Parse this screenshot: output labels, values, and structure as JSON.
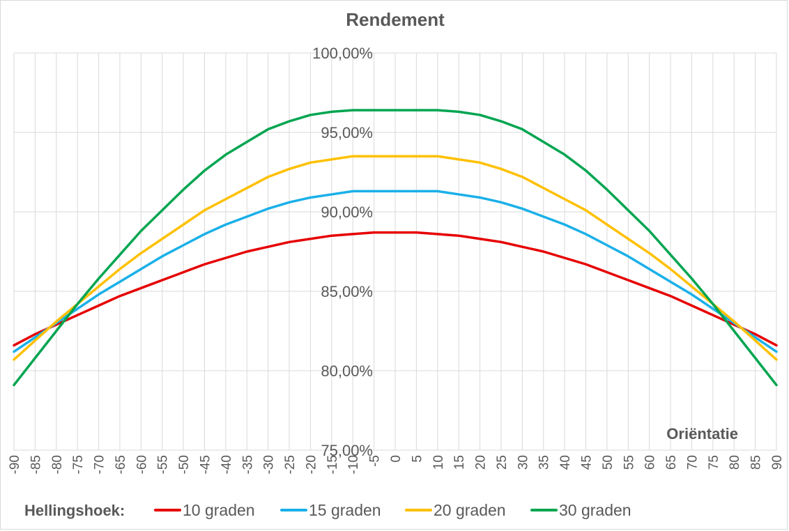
{
  "chart_data": {
    "type": "line",
    "title": "Rendement",
    "xlabel": "Oriëntatie",
    "ylabel": "",
    "x": [
      -90,
      -85,
      -80,
      -75,
      -70,
      -65,
      -60,
      -55,
      -50,
      -45,
      -40,
      -35,
      -30,
      -25,
      -20,
      -15,
      -10,
      -5,
      0,
      5,
      10,
      15,
      20,
      25,
      30,
      35,
      40,
      45,
      50,
      55,
      60,
      65,
      70,
      75,
      80,
      85,
      90
    ],
    "x_tick_labels": [
      "-90",
      "-85",
      "-80",
      "-75",
      "-70",
      "-65",
      "-60",
      "-55",
      "-50",
      "-45",
      "-40",
      "-35",
      "-30",
      "-25",
      "-20",
      "-15",
      "-10",
      "-5",
      "0",
      "5",
      "10",
      "15",
      "20",
      "25",
      "30",
      "35",
      "40",
      "45",
      "50",
      "55",
      "60",
      "65",
      "70",
      "75",
      "80",
      "85",
      "90"
    ],
    "y_tick_labels": [
      "75,00%",
      "80,00%",
      "85,00%",
      "90,00%",
      "95,00%",
      "100,00%"
    ],
    "y_ticks": [
      75,
      80,
      85,
      90,
      95,
      100
    ],
    "xlim": [
      -90,
      90
    ],
    "ylim": [
      75,
      100
    ],
    "y_unit": "%",
    "grid": {
      "vertical": true,
      "horizontal": true
    },
    "legend": {
      "title": "Hellingshoek:",
      "position": "bottom"
    },
    "series": [
      {
        "name": "10 graden",
        "color": "#e60000",
        "values": [
          81.6,
          82.3,
          82.9,
          83.5,
          84.1,
          84.7,
          85.2,
          85.7,
          86.2,
          86.7,
          87.1,
          87.5,
          87.8,
          88.1,
          88.3,
          88.5,
          88.6,
          88.7,
          88.7,
          88.7,
          88.6,
          88.5,
          88.3,
          88.1,
          87.8,
          87.5,
          87.1,
          86.7,
          86.2,
          85.7,
          85.2,
          84.7,
          84.1,
          83.5,
          82.9,
          82.3,
          81.6
        ]
      },
      {
        "name": "15 graden",
        "color": "#1ab0e8",
        "values": [
          81.2,
          82.1,
          83.0,
          83.9,
          84.8,
          85.6,
          86.4,
          87.2,
          87.9,
          88.6,
          89.2,
          89.7,
          90.2,
          90.6,
          90.9,
          91.1,
          91.3,
          91.3,
          91.3,
          91.3,
          91.3,
          91.1,
          90.9,
          90.6,
          90.2,
          89.7,
          89.2,
          88.6,
          87.9,
          87.2,
          86.4,
          85.6,
          84.8,
          83.9,
          83.0,
          82.1,
          81.2
        ]
      },
      {
        "name": "20 graden",
        "color": "#ffc000",
        "values": [
          80.7,
          81.9,
          83.1,
          84.2,
          85.3,
          86.4,
          87.4,
          88.3,
          89.2,
          90.1,
          90.8,
          91.5,
          92.2,
          92.7,
          93.1,
          93.3,
          93.5,
          93.5,
          93.5,
          93.5,
          93.5,
          93.3,
          93.1,
          92.7,
          92.2,
          91.5,
          90.8,
          90.1,
          89.2,
          88.3,
          87.4,
          86.4,
          85.3,
          84.2,
          83.1,
          81.9,
          80.7
        ]
      },
      {
        "name": "30 graden",
        "color": "#00a550",
        "values": [
          79.1,
          80.8,
          82.5,
          84.2,
          85.8,
          87.3,
          88.8,
          90.1,
          91.4,
          92.6,
          93.6,
          94.4,
          95.2,
          95.7,
          96.1,
          96.3,
          96.4,
          96.4,
          96.4,
          96.4,
          96.4,
          96.3,
          96.1,
          95.7,
          95.2,
          94.4,
          93.6,
          92.6,
          91.4,
          90.1,
          88.8,
          87.3,
          85.8,
          84.2,
          82.5,
          80.8,
          79.1
        ]
      }
    ]
  }
}
